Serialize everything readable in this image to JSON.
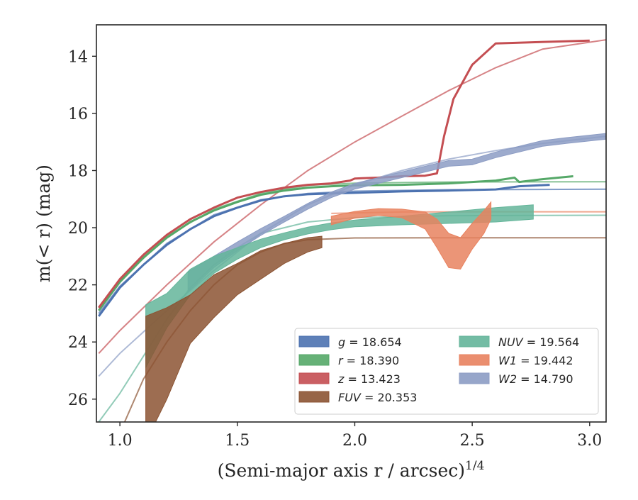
{
  "chart_data": {
    "type": "line",
    "xlabel": "(Semi-major axis r / arcsec)",
    "xlabel_exponent": "1/4",
    "ylabel": "m(< r) (mag)",
    "xlim": [
      0.9,
      3.07
    ],
    "ylim": [
      26.8,
      12.9
    ],
    "y_inverted": true,
    "x_ticks": [
      "1.0",
      "1.5",
      "2.0",
      "2.5",
      "3.0"
    ],
    "x_tick_values": [
      1.0,
      1.5,
      2.0,
      2.5,
      3.0
    ],
    "y_ticks": [
      "14",
      "16",
      "18",
      "20",
      "22",
      "24",
      "26"
    ],
    "y_tick_values": [
      14,
      16,
      18,
      20,
      22,
      24,
      26
    ],
    "grid": false,
    "legend_position": "lower-right",
    "legend": [
      {
        "var": "g",
        "value": "18.654",
        "color": "#4c72b0"
      },
      {
        "var": "r",
        "value": "18.390",
        "color": "#55a868"
      },
      {
        "var": "z",
        "value": "13.423",
        "color": "#c44e52"
      },
      {
        "var": "FUV",
        "value": "20.353",
        "color": "#8c5433"
      },
      {
        "var": "NUV",
        "value": "19.564",
        "color": "#64b59a"
      },
      {
        "var": "W1",
        "value": "19.442",
        "color": "#e8825f"
      },
      {
        "var": "W2",
        "value": "14.790",
        "color": "#8c9cc4"
      }
    ],
    "series": [
      {
        "name": "g = 18.654",
        "color": "#4c72b0",
        "kind": "line",
        "x": [
          0.91,
          1.0,
          1.1,
          1.2,
          1.3,
          1.4,
          1.5,
          1.6,
          1.7,
          1.8,
          1.9,
          2.0,
          2.2,
          2.4,
          2.6,
          2.7,
          2.83
        ],
        "y": [
          23.1,
          22.1,
          21.3,
          20.6,
          20.05,
          19.6,
          19.3,
          19.05,
          18.9,
          18.83,
          18.8,
          18.78,
          18.73,
          18.7,
          18.66,
          18.55,
          18.5
        ]
      },
      {
        "name": "r = 18.390",
        "color": "#55a868",
        "kind": "line",
        "x": [
          0.91,
          1.0,
          1.1,
          1.2,
          1.3,
          1.4,
          1.5,
          1.6,
          1.7,
          1.8,
          1.9,
          2.0,
          2.2,
          2.4,
          2.6,
          2.68,
          2.7,
          2.8,
          2.93
        ],
        "y": [
          22.9,
          21.9,
          21.05,
          20.35,
          19.8,
          19.4,
          19.1,
          18.85,
          18.7,
          18.6,
          18.55,
          18.52,
          18.5,
          18.45,
          18.35,
          18.25,
          18.4,
          18.3,
          18.2
        ]
      },
      {
        "name": "z = 13.423",
        "color": "#c44e52",
        "kind": "line",
        "x": [
          0.91,
          1.0,
          1.1,
          1.2,
          1.3,
          1.4,
          1.5,
          1.6,
          1.7,
          1.8,
          1.9,
          1.98,
          2.0,
          2.1,
          2.2,
          2.3,
          2.35,
          2.38,
          2.42,
          2.5,
          2.6,
          3.0
        ],
        "y": [
          22.8,
          21.8,
          20.95,
          20.25,
          19.7,
          19.3,
          18.95,
          18.75,
          18.6,
          18.5,
          18.45,
          18.35,
          18.28,
          18.25,
          18.2,
          18.18,
          18.1,
          16.8,
          15.5,
          14.3,
          13.55,
          13.45
        ]
      },
      {
        "name": "W2 = 14.790",
        "color": "#8c9cc4",
        "kind": "band",
        "x": [
          1.29,
          1.4,
          1.5,
          1.6,
          1.7,
          1.8,
          1.9,
          2.0,
          2.1,
          2.2,
          2.3,
          2.4,
          2.5,
          2.6,
          2.7,
          2.8,
          2.9,
          3.07
        ],
        "y": [
          21.9,
          21.2,
          20.65,
          20.15,
          19.7,
          19.25,
          18.85,
          18.55,
          18.35,
          18.15,
          17.95,
          17.75,
          17.7,
          17.45,
          17.25,
          17.05,
          16.95,
          16.8
        ],
        "err": [
          0.35,
          0.2,
          0.15,
          0.12,
          0.1,
          0.1,
          0.1,
          0.1,
          0.1,
          0.1,
          0.1,
          0.1,
          0.1,
          0.1,
          0.1,
          0.1,
          0.1,
          0.1
        ]
      },
      {
        "name": "NUV = 19.564",
        "color": "#64b59a",
        "kind": "band",
        "x": [
          1.11,
          1.2,
          1.3,
          1.4,
          1.5,
          1.6,
          1.7,
          1.8,
          1.9,
          2.0,
          2.2,
          2.4,
          2.6,
          2.76
        ],
        "y": [
          23.8,
          22.9,
          21.9,
          21.3,
          20.9,
          20.55,
          20.3,
          20.1,
          19.95,
          19.85,
          19.75,
          19.65,
          19.55,
          19.45
        ],
        "err": [
          1.1,
          0.6,
          0.45,
          0.3,
          0.2,
          0.15,
          0.12,
          0.12,
          0.12,
          0.12,
          0.15,
          0.2,
          0.25,
          0.25
        ]
      },
      {
        "name": "FUV = 20.353",
        "color": "#8c5433",
        "kind": "band",
        "x": [
          1.11,
          1.2,
          1.3,
          1.4,
          1.5,
          1.6,
          1.7,
          1.8,
          1.86
        ],
        "y": [
          25.3,
          24.4,
          23.2,
          22.4,
          21.8,
          21.3,
          20.9,
          20.6,
          20.5
        ],
        "err": [
          2.2,
          1.6,
          0.85,
          0.75,
          0.55,
          0.5,
          0.35,
          0.25,
          0.2
        ]
      },
      {
        "name": "W1 = 19.442",
        "color": "#e8825f",
        "kind": "band",
        "x": [
          1.9,
          2.0,
          2.1,
          2.2,
          2.3,
          2.35,
          2.4,
          2.45,
          2.5,
          2.55,
          2.58
        ],
        "y": [
          19.75,
          19.55,
          19.45,
          19.5,
          19.75,
          20.2,
          20.8,
          20.9,
          20.3,
          19.8,
          19.4
        ],
        "err": [
          0.15,
          0.12,
          0.12,
          0.15,
          0.3,
          0.5,
          0.6,
          0.55,
          0.45,
          0.4,
          0.3
        ]
      }
    ],
    "models": [
      {
        "name": "g",
        "color": "#4c72b0",
        "x": [
          0.91,
          1.0,
          1.2,
          1.4,
          1.6,
          1.8,
          2.0,
          2.4,
          3.07
        ],
        "y": [
          23.0,
          22.05,
          20.55,
          19.55,
          19.02,
          18.8,
          18.72,
          18.67,
          18.654
        ]
      },
      {
        "name": "r",
        "color": "#55a868",
        "x": [
          0.91,
          1.0,
          1.2,
          1.4,
          1.6,
          1.8,
          2.0,
          2.4,
          3.07
        ],
        "y": [
          22.8,
          21.85,
          20.3,
          19.35,
          18.8,
          18.52,
          18.44,
          18.4,
          18.39
        ]
      },
      {
        "name": "z",
        "color": "#c44e52",
        "x": [
          0.91,
          1.0,
          1.2,
          1.4,
          1.6,
          1.8,
          2.0,
          2.2,
          2.4,
          2.6,
          2.8,
          3.07
        ],
        "y": [
          24.4,
          23.6,
          22.0,
          20.5,
          19.2,
          18.0,
          17.0,
          16.1,
          15.2,
          14.4,
          13.75,
          13.423
        ]
      },
      {
        "name": "W2",
        "color": "#8c9cc4",
        "x": [
          0.91,
          1.0,
          1.2,
          1.4,
          1.6,
          1.8,
          2.0,
          2.2,
          2.4,
          2.6,
          2.8,
          3.07
        ],
        "y": [
          25.2,
          24.4,
          22.9,
          21.5,
          20.2,
          19.2,
          18.5,
          18.0,
          17.6,
          17.3,
          17.05,
          16.8
        ]
      },
      {
        "name": "NUV",
        "color": "#64b59a",
        "x": [
          0.91,
          1.0,
          1.1,
          1.2,
          1.3,
          1.4,
          1.5,
          1.6,
          1.8,
          2.0,
          2.4,
          3.07
        ],
        "y": [
          26.8,
          25.8,
          24.5,
          23.2,
          22.1,
          21.3,
          20.7,
          20.2,
          19.8,
          19.65,
          19.58,
          19.564
        ]
      },
      {
        "name": "W1",
        "color": "#e8825f",
        "x": [
          1.9,
          2.2,
          2.6,
          3.07
        ],
        "y": [
          19.5,
          19.45,
          19.442,
          19.442
        ]
      },
      {
        "name": "FUV",
        "color": "#8c5433",
        "x": [
          1.02,
          1.1,
          1.2,
          1.3,
          1.4,
          1.5,
          1.6,
          1.7,
          1.8,
          2.0,
          2.4,
          3.07
        ],
        "y": [
          26.8,
          25.3,
          24.0,
          22.9,
          22.0,
          21.3,
          20.85,
          20.55,
          20.42,
          20.36,
          20.354,
          20.353
        ]
      }
    ]
  }
}
